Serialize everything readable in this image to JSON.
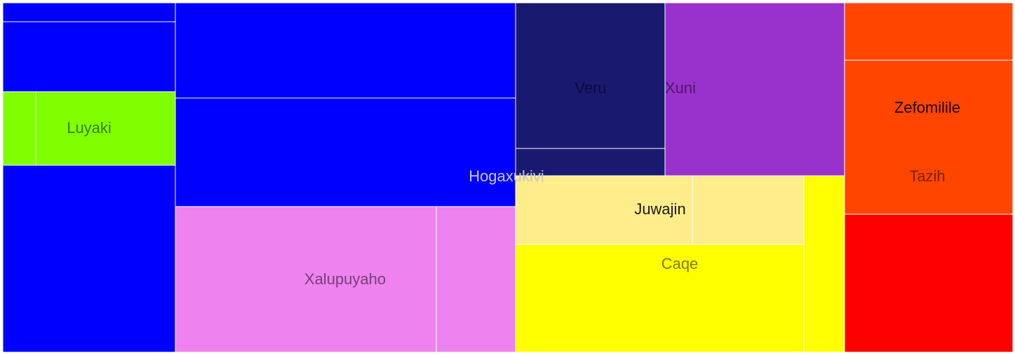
{
  "chart_data": {
    "type": "treemap",
    "groups": [
      {
        "label": "",
        "color": "#0000FF",
        "text_color": "#0000FF",
        "leaves": [
          {
            "color": "#0000FF"
          },
          {
            "color": "#0000FF"
          },
          {
            "color": "#0000FF"
          }
        ]
      },
      {
        "label": "Hogaxukivi",
        "color": "#0000FF",
        "text_color": "#C8C8C8",
        "leaves": [
          {
            "color": "#0000FF"
          },
          {
            "color": "#0000FF"
          }
        ]
      },
      {
        "label": "Luyaki",
        "color": "#7FFF00",
        "text_color": "#3C7F00",
        "leaves": [
          {
            "color": "#7FFF00"
          },
          {
            "color": "#7FFF00"
          }
        ]
      },
      {
        "label": "Xalupuyaho",
        "color": "#EE82EE",
        "text_color": "#774177",
        "leaves": [
          {
            "color": "#EE82EE"
          },
          {
            "color": "#EE82EE"
          }
        ]
      },
      {
        "label": "Veru",
        "color": "#191970",
        "text_color": "#0C0C38",
        "leaves": [
          {
            "color": "#191970"
          },
          {
            "color": "#191970"
          }
        ]
      },
      {
        "label": "Xuni",
        "color": "#9932CC",
        "text_color": "#4C1966",
        "leaves": [
          {
            "color": "#9932CC"
          }
        ]
      },
      {
        "label": "Juwajin",
        "color": "#FFEC8B",
        "text_color": "#1A1A1A",
        "leaves": [
          {
            "color": "#FFEC8B"
          },
          {
            "color": "#FFEC8B"
          }
        ]
      },
      {
        "label": "Caqe",
        "color": "#FFFF00",
        "text_color": "#7F7F00",
        "leaves": [
          {
            "color": "#FFFF00"
          },
          {
            "color": "#FFFF00"
          }
        ]
      },
      {
        "label": "Zefomilile",
        "color": "#FF4500",
        "text_color": "#1A0700",
        "leaves": [
          {
            "color": "#FF4500"
          }
        ]
      },
      {
        "label": "Tazih",
        "color": "#FF4500",
        "text_color": "#7F2200",
        "leaves": [
          {
            "color": "#FF4500"
          },
          {
            "color": "#FF0000"
          }
        ]
      }
    ]
  }
}
